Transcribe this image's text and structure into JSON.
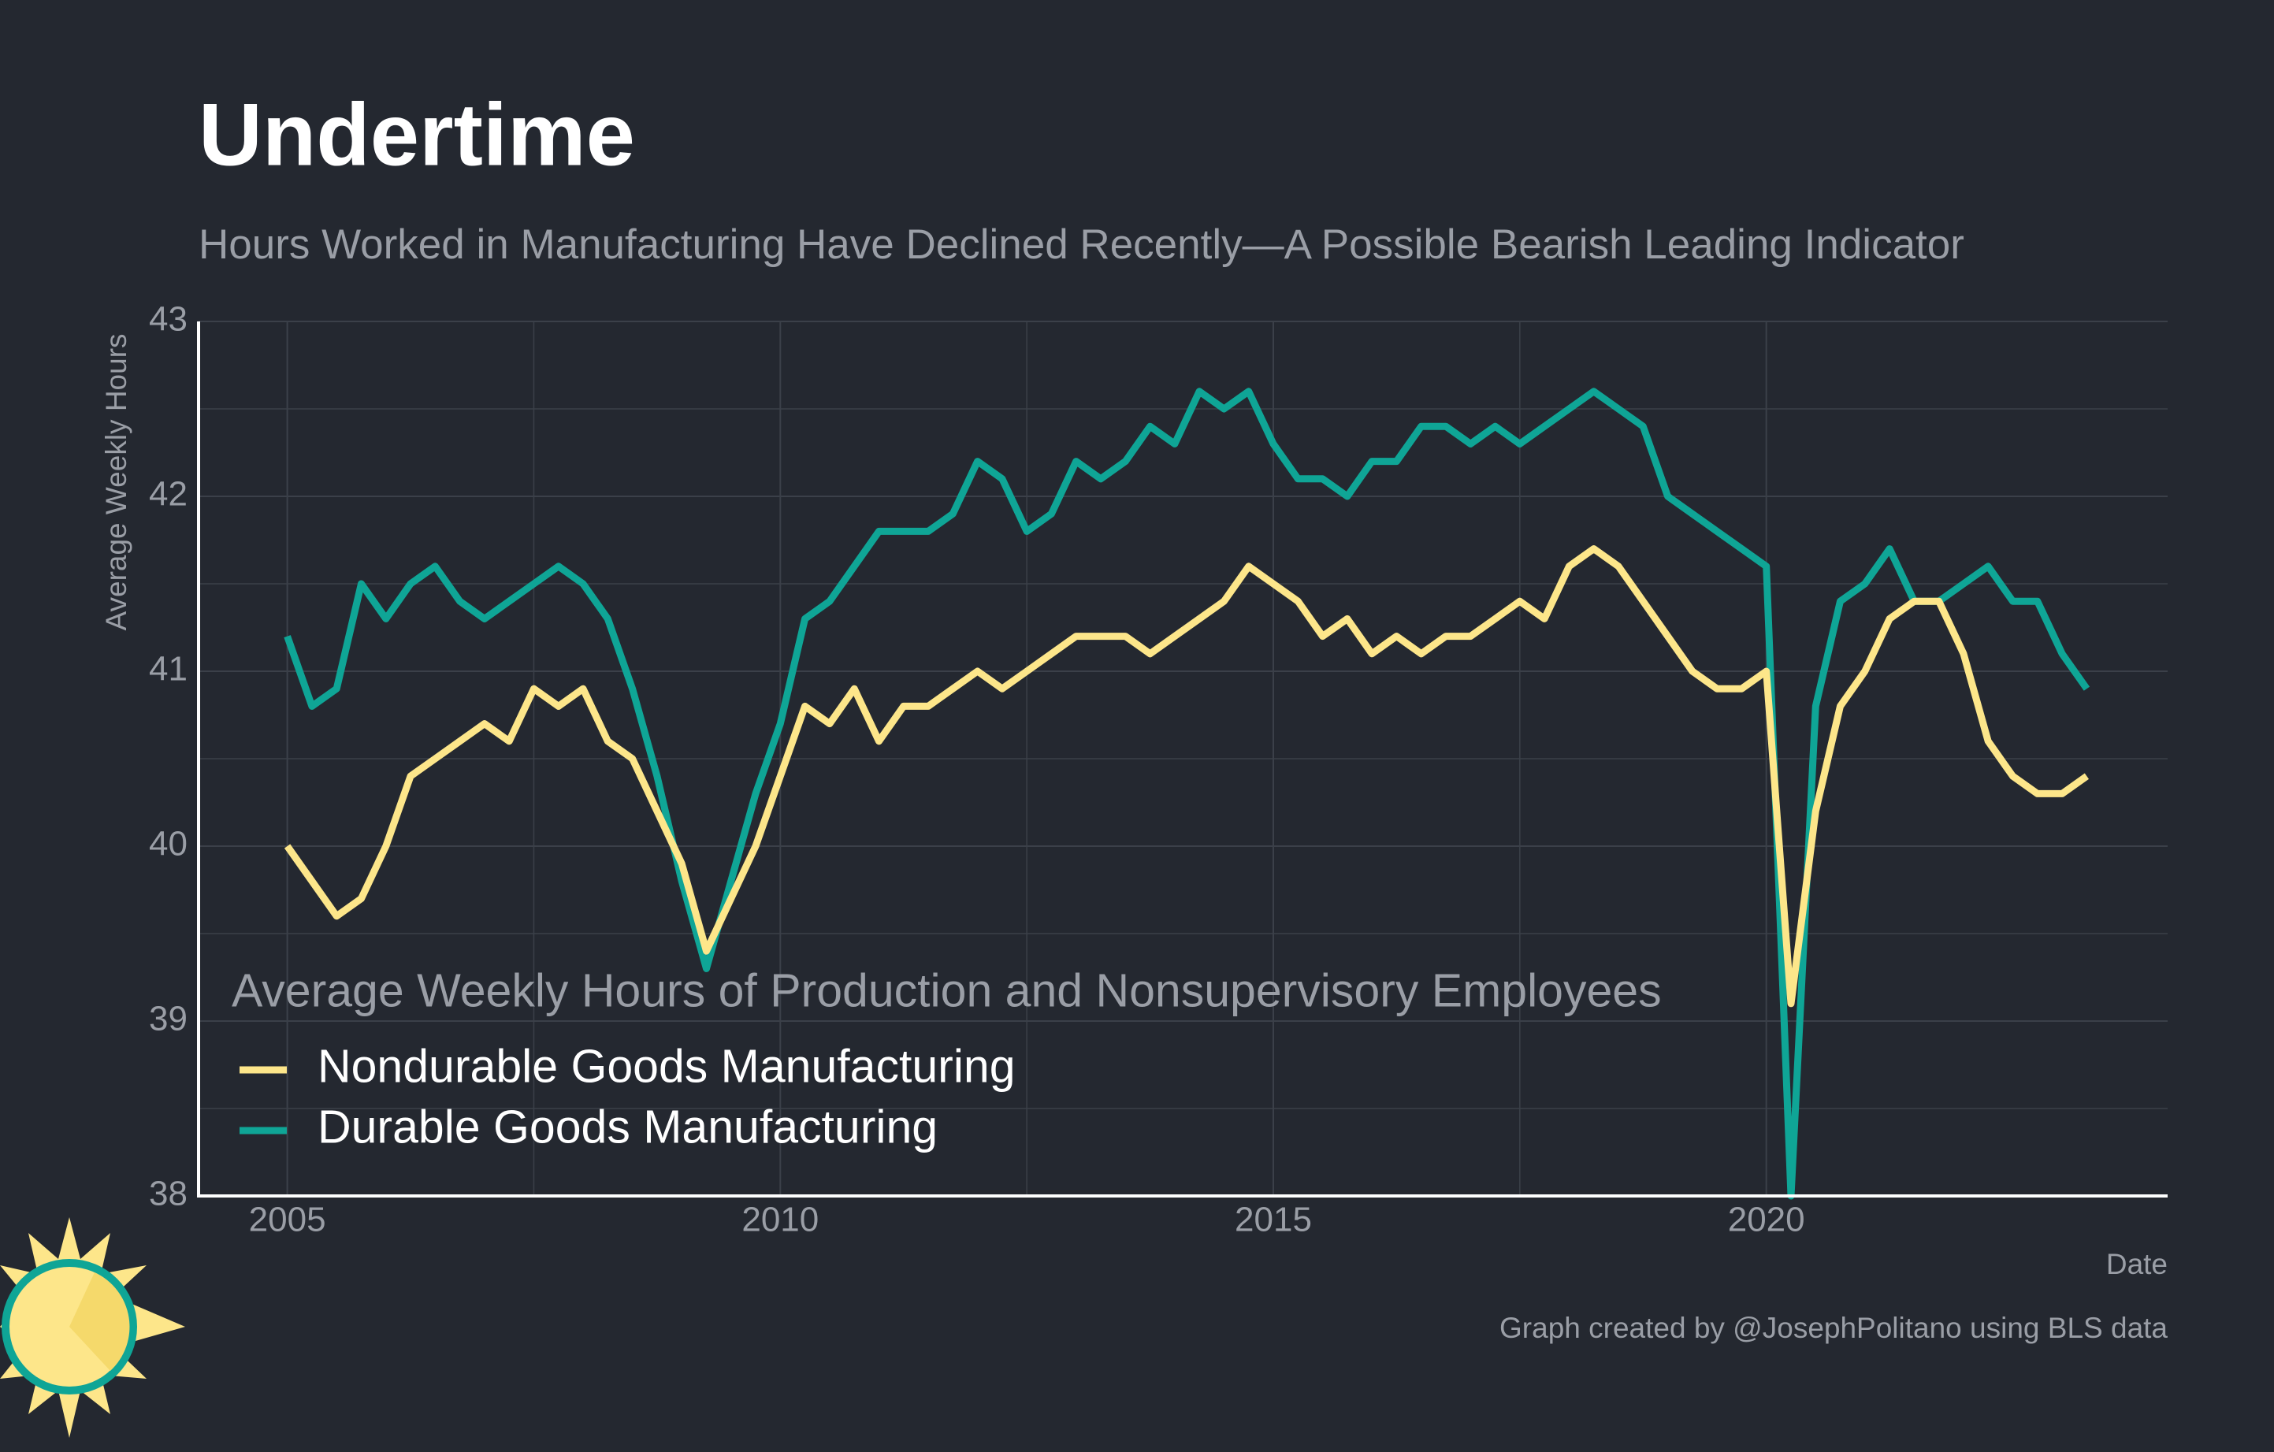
{
  "chart_data": {
    "type": "line",
    "title": "Undertime",
    "subtitle": "Hours Worked in Manufacturing Have Declined Recently—A Possible Bearish Leading Indicator",
    "ylabel": "Average Weekly Hours",
    "xlabel": "Date",
    "legend_title": "Average Weekly Hours of Production and Nonsupervisory Employees",
    "credit": "Graph created by @JosephPolitano using BLS data",
    "xlim": [
      2004.1,
      2024.07
    ],
    "xticks": [
      2005,
      2010,
      2015,
      2020
    ],
    "ylim": [
      38,
      43
    ],
    "yticks": [
      38,
      39,
      40,
      41,
      42,
      43
    ],
    "grid": true,
    "legend": "lower left",
    "x": [
      2005,
      2005.25,
      2005.5,
      2005.75,
      2006,
      2006.25,
      2006.5,
      2006.75,
      2007,
      2007.25,
      2007.5,
      2007.75,
      2008,
      2008.25,
      2008.5,
      2008.75,
      2009,
      2009.25,
      2009.5,
      2009.75,
      2010,
      2010.25,
      2010.5,
      2010.75,
      2011,
      2011.25,
      2011.5,
      2011.75,
      2012,
      2012.25,
      2012.5,
      2012.75,
      2013,
      2013.25,
      2013.5,
      2013.75,
      2014,
      2014.25,
      2014.5,
      2014.75,
      2015,
      2015.25,
      2015.5,
      2015.75,
      2016,
      2016.25,
      2016.5,
      2016.75,
      2017,
      2017.25,
      2017.5,
      2017.75,
      2018,
      2018.25,
      2018.5,
      2018.75,
      2019,
      2019.25,
      2019.5,
      2019.75,
      2020,
      2020.25,
      2020.5,
      2020.75,
      2021,
      2021.25,
      2021.5,
      2021.75,
      2022,
      2022.25,
      2022.5,
      2022.75,
      2023,
      2023.25
    ],
    "series": [
      {
        "name": "Nondurable Goods Manufacturing",
        "color": "#fde68a",
        "values": [
          40.0,
          39.8,
          39.6,
          39.7,
          40.0,
          40.4,
          40.5,
          40.6,
          40.7,
          40.6,
          40.9,
          40.8,
          40.9,
          40.6,
          40.5,
          40.2,
          39.9,
          39.4,
          39.7,
          40.0,
          40.4,
          40.8,
          40.7,
          40.9,
          40.6,
          40.8,
          40.8,
          40.9,
          41.0,
          40.9,
          41.0,
          41.1,
          41.2,
          41.2,
          41.2,
          41.1,
          41.2,
          41.3,
          41.4,
          41.6,
          41.5,
          41.4,
          41.2,
          41.3,
          41.1,
          41.2,
          41.1,
          41.2,
          41.2,
          41.3,
          41.4,
          41.3,
          41.6,
          41.7,
          41.6,
          41.4,
          41.2,
          41.0,
          40.9,
          40.9,
          41.0,
          39.1,
          40.2,
          40.8,
          41.0,
          41.3,
          41.4,
          41.4,
          41.1,
          40.6,
          40.4,
          40.3,
          40.3,
          40.4
        ]
      },
      {
        "name": "Durable Goods Manufacturing",
        "color": "#0fa596",
        "values": [
          41.2,
          40.8,
          40.9,
          41.5,
          41.3,
          41.5,
          41.6,
          41.4,
          41.3,
          41.4,
          41.5,
          41.6,
          41.5,
          41.3,
          40.9,
          40.4,
          39.8,
          39.3,
          39.8,
          40.3,
          40.7,
          41.3,
          41.4,
          41.6,
          41.8,
          41.8,
          41.8,
          41.9,
          42.2,
          42.1,
          41.8,
          41.9,
          42.2,
          42.1,
          42.2,
          42.4,
          42.3,
          42.6,
          42.5,
          42.6,
          42.3,
          42.1,
          42.1,
          42.0,
          42.2,
          42.2,
          42.4,
          42.4,
          42.3,
          42.4,
          42.3,
          42.4,
          42.5,
          42.6,
          42.5,
          42.4,
          42.0,
          41.9,
          41.8,
          41.7,
          41.6,
          38.0,
          40.8,
          41.4,
          41.5,
          41.7,
          41.4,
          41.4,
          41.5,
          41.6,
          41.4,
          41.4,
          41.1,
          40.9
        ]
      }
    ]
  }
}
